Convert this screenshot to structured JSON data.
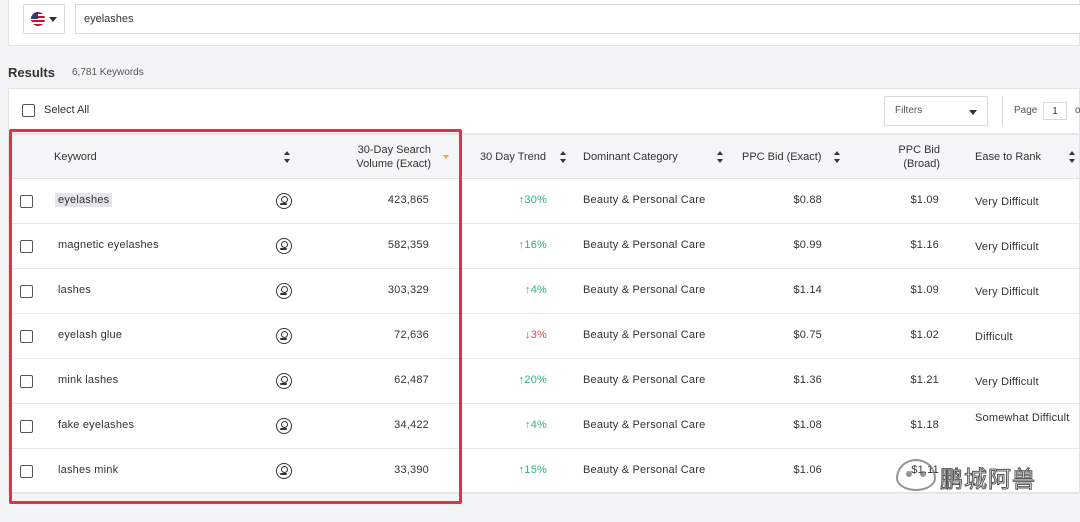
{
  "search": {
    "country_icon": "us-flag-icon",
    "query": "eyelashes"
  },
  "results": {
    "title": "Results",
    "count": "6,781 Keywords"
  },
  "toolbar": {
    "select_all_label": "Select All",
    "filters_label": "Filters",
    "page_label": "Page",
    "page_value": "1",
    "page_of": "o"
  },
  "table": {
    "headers": {
      "keyword": "Keyword",
      "search_volume_line1": "30-Day Search",
      "search_volume_line2": "Volume (Exact)",
      "trend": "30 Day Trend",
      "category": "Dominant Category",
      "ppc_exact": "PPC Bid (Exact)",
      "ppc_broad_line1": "PPC Bid",
      "ppc_broad_line2": "(Broad)",
      "ease": "Ease to Rank"
    },
    "rows": [
      {
        "keyword": "eyelashes",
        "volume": "423,865",
        "trend": "30%",
        "trend_dir": "up",
        "category": "Beauty & Personal Care",
        "ppc_exact": "$0.88",
        "ppc_broad": "$1.09",
        "ease": "Very Difficult"
      },
      {
        "keyword": "magnetic eyelashes",
        "volume": "582,359",
        "trend": "16%",
        "trend_dir": "up",
        "category": "Beauty & Personal Care",
        "ppc_exact": "$0.99",
        "ppc_broad": "$1.16",
        "ease": "Very Difficult"
      },
      {
        "keyword": "lashes",
        "volume": "303,329",
        "trend": "4%",
        "trend_dir": "up",
        "category": "Beauty & Personal Care",
        "ppc_exact": "$1.14",
        "ppc_broad": "$1.09",
        "ease": "Very Difficult"
      },
      {
        "keyword": "eyelash glue",
        "volume": "72,636",
        "trend": "3%",
        "trend_dir": "down",
        "category": "Beauty & Personal Care",
        "ppc_exact": "$0.75",
        "ppc_broad": "$1.02",
        "ease": "Difficult"
      },
      {
        "keyword": "mink lashes",
        "volume": "62,487",
        "trend": "20%",
        "trend_dir": "up",
        "category": "Beauty & Personal Care",
        "ppc_exact": "$1.36",
        "ppc_broad": "$1.21",
        "ease": "Very Difficult"
      },
      {
        "keyword": "fake eyelashes",
        "volume": "34,422",
        "trend": "4%",
        "trend_dir": "up",
        "category": "Beauty & Personal Care",
        "ppc_exact": "$1.08",
        "ppc_broad": "$1.18",
        "ease": "Somewhat Difficult"
      },
      {
        "keyword": "lashes mink",
        "volume": "33,390",
        "trend": "15%",
        "trend_dir": "up",
        "category": "Beauty & Personal Care",
        "ppc_exact": "$1.06",
        "ppc_broad": "$1.11",
        "ease": ""
      }
    ]
  },
  "colors": {
    "trend_up": "#2fb380",
    "trend_down": "#e4424d",
    "highlight_box": "#e0323f",
    "sort_active": "#f5a623"
  },
  "watermark": {
    "text": "鹏城阿兽"
  }
}
